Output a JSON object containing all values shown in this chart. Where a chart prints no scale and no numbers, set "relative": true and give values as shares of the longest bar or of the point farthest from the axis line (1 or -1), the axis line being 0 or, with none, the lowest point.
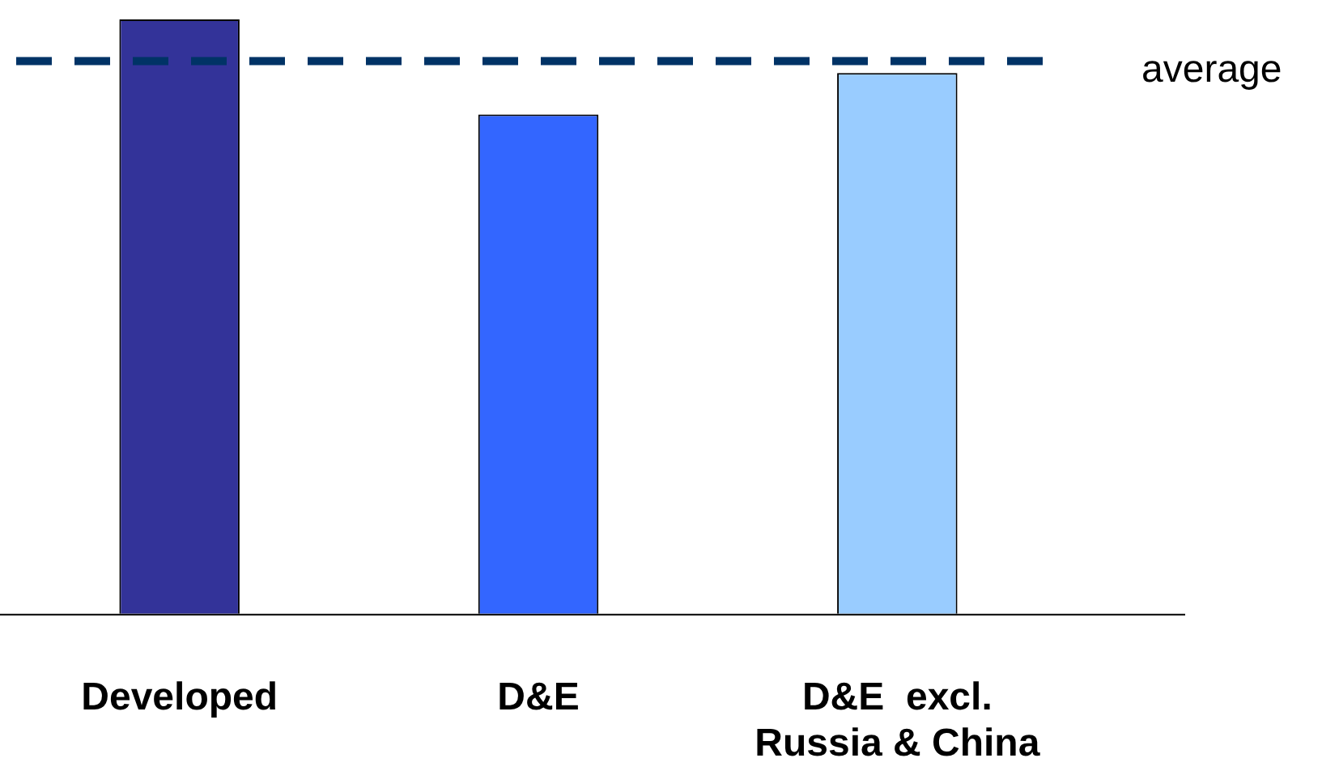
{
  "chart_data": {
    "type": "bar",
    "relative": true,
    "categories": [
      "Developed",
      "D&E",
      "D&E  excl.\nRussia & China"
    ],
    "values": [
      1,
      0.84,
      0.91
    ],
    "colors": [
      "#333399",
      "#3366ff",
      "#99ccff"
    ],
    "ref_lines": [
      {
        "axis": "y",
        "value": 0.93,
        "label": "average",
        "color": "#003366",
        "line_style": "dashed"
      }
    ],
    "legend": false
  }
}
